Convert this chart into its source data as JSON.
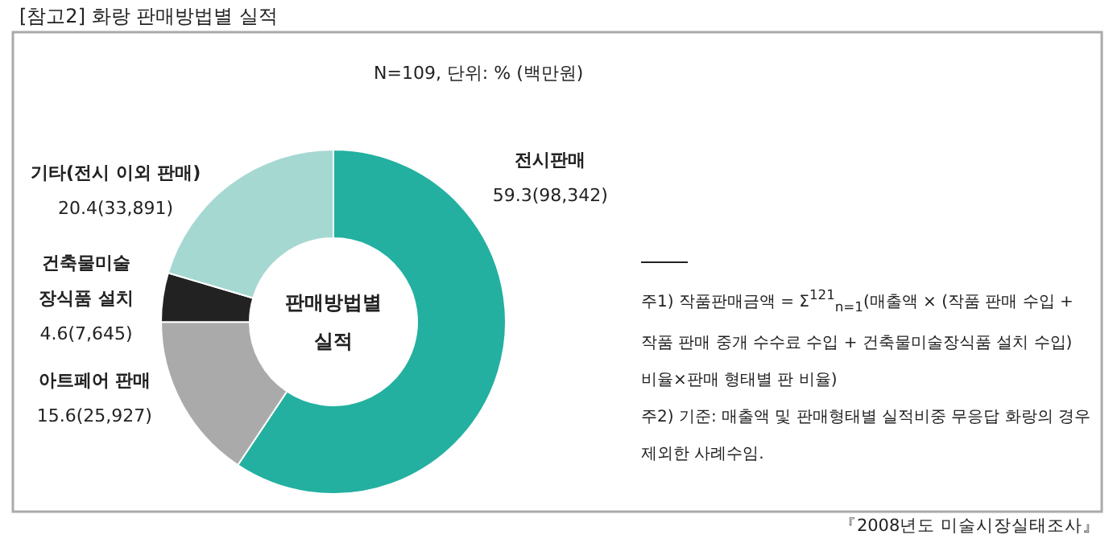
{
  "chart_data": {
    "type": "donut",
    "title": "[참고2] 화랑 판매방법별 실적",
    "subtitle": "N=109, 단위: % (백만원)",
    "categories": [
      "전시판매",
      "아트페어 판매",
      "건축물미술 장식품 설치",
      "기타(전시 이외 판매)"
    ],
    "values": [
      59.3,
      15.6,
      4.6,
      20.4
    ],
    "value_labels": [
      "59.3(98,342)",
      "15.6(25,927)",
      "4.6(7,645)",
      "20.4(33,891)"
    ],
    "colors": [
      "#23b0a0",
      "#aaaaaa",
      "#222222",
      "#a6d8d2"
    ],
    "annotations": [
      "판매방법별 실적",
      "주1) 작품판매금액 = Σ$^{121}$$_{n=1}$(매출액 × (작품 판매 수입 + 작품 판매 중개 수수료 수입 + 건축물미술장식품 설치 수입) 비율×판매 형태별 판 비율)",
      "주2) 기준: 매출액 및 판매형태별 실적비중 무응답 화랑의 경우 제외한 사례수임.",
      "『2008년도 미술시장실태조사』"
    ]
  }
}
